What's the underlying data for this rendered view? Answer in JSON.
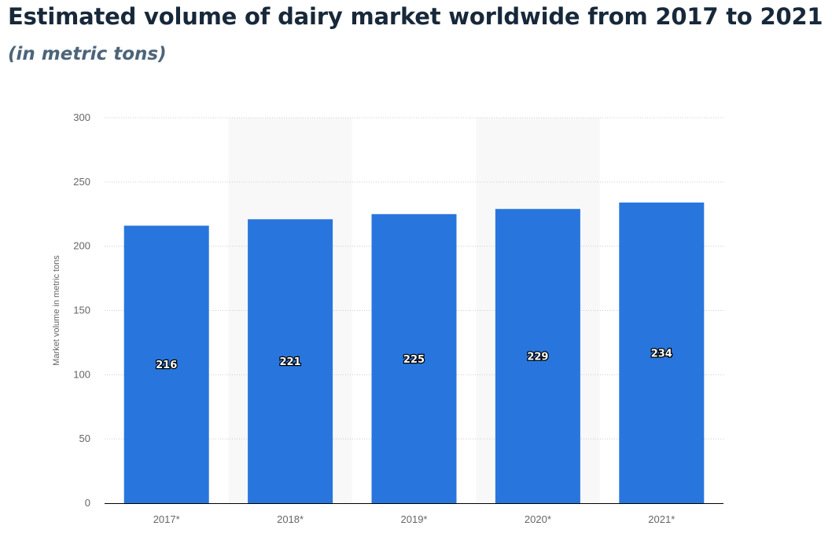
{
  "header": {
    "title": "Estimated volume of dairy market worldwide from 2017 to 2021",
    "subtitle": "(in metric tons)"
  },
  "colors": {
    "bar": "#2876dd",
    "stripe": "#f8f8f8",
    "grid": "#cccccc",
    "axis": "#000000"
  },
  "chart_data": {
    "type": "bar",
    "title": "Estimated volume of dairy market worldwide from 2017 to 2021",
    "subtitle": "(in metric tons)",
    "categories": [
      "2017*",
      "2018*",
      "2019*",
      "2020*",
      "2021*"
    ],
    "values": [
      216,
      221,
      225,
      229,
      234
    ],
    "xlabel": "",
    "ylabel": "Market volume in metric tons",
    "ylim": [
      0,
      300
    ],
    "yticks": [
      0,
      50,
      100,
      150,
      200,
      250,
      300
    ],
    "grid": true,
    "legend": "none"
  }
}
